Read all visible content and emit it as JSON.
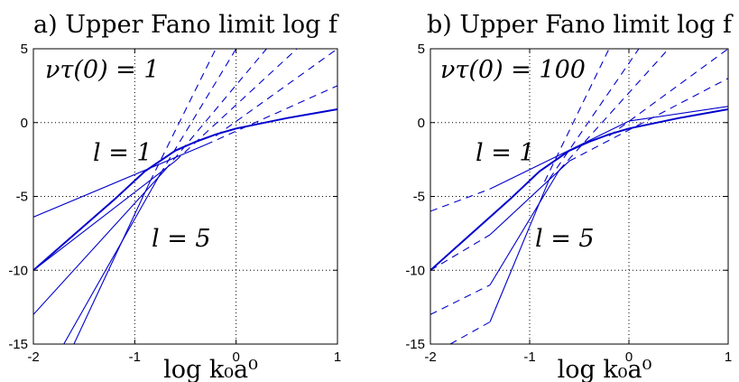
{
  "chart_data": [
    {
      "type": "line",
      "title": "a) Upper Fano limit log f",
      "xlabel": "log k₀a⁰",
      "ylabel": "",
      "xlim": [
        -2,
        1
      ],
      "ylim": [
        -15,
        5
      ],
      "x_ticks": [
        "-2",
        "-1",
        "0",
        "1"
      ],
      "y_ticks": [
        "5",
        "0",
        "-5",
        "-10",
        "-15"
      ],
      "grid": true,
      "annotations": [
        "ντ(0) = 1",
        "l = 1",
        "l = 5"
      ],
      "envelope": {
        "x": [
          -2,
          -1.6,
          -1.2,
          -0.9,
          -0.6,
          -0.4,
          -0.2,
          0,
          0.5,
          1
        ],
        "y": [
          -10,
          -7.6,
          -5.2,
          -3.3,
          -1.9,
          -1.3,
          -0.8,
          -0.4,
          0.3,
          0.9
        ]
      },
      "series": [
        {
          "x": [
            -2,
            -0.3
          ],
          "y": [
            -6.4,
            -1.5
          ],
          "style": "solid"
        },
        {
          "x": [
            -0.3,
            1
          ],
          "y": [
            -1.5,
            2.5
          ],
          "style": "dashed"
        },
        {
          "x": [
            -2,
            -0.6
          ],
          "y": [
            -10,
            -2.6
          ],
          "style": "solid"
        },
        {
          "x": [
            -0.6,
            0.6
          ],
          "y": [
            -2.6,
            5
          ],
          "style": "dashed"
        },
        {
          "x": [
            -1.7,
            -0.75
          ],
          "y": [
            -15,
            -3.5
          ],
          "style": "solid"
        },
        {
          "x": [
            -0.75,
            0
          ],
          "y": [
            -3.5,
            5
          ],
          "style": "dashed"
        },
        {
          "x": [
            -2,
            -0.7
          ],
          "y": [
            -13,
            -3.2
          ],
          "style": "solid"
        },
        {
          "x": [
            -0.7,
            0.3
          ],
          "y": [
            -3.2,
            5
          ],
          "style": "dashed"
        },
        {
          "x": [
            -1.6,
            -0.85
          ],
          "y": [
            -15,
            -4
          ],
          "style": "solid"
        },
        {
          "x": [
            -0.85,
            -0.2
          ],
          "y": [
            -4,
            5
          ],
          "style": "dashed"
        },
        {
          "x": [
            -0.2,
            1
          ],
          "y": [
            -0.9,
            5
          ],
          "style": "dashed"
        }
      ]
    },
    {
      "type": "line",
      "title": "b) Upper Fano limit log f",
      "xlabel": "log k₀a⁰",
      "ylabel": "",
      "xlim": [
        -2,
        1
      ],
      "ylim": [
        -15,
        5
      ],
      "x_ticks": [
        "-2",
        "-1",
        "0",
        "1"
      ],
      "y_ticks": [
        "5",
        "0",
        "-5",
        "-10",
        "-15"
      ],
      "grid": true,
      "annotations": [
        "ντ(0) = 100",
        "l = 1",
        "l = 5"
      ],
      "envelope": {
        "x": [
          -2,
          -1.6,
          -1.2,
          -0.9,
          -0.6,
          -0.4,
          -0.2,
          0,
          0.5,
          1
        ],
        "y": [
          -10,
          -7.6,
          -5.2,
          -3.3,
          -1.9,
          -1.3,
          -0.8,
          -0.4,
          0.3,
          0.9
        ]
      },
      "series": [
        {
          "x": [
            -1.4,
            0
          ],
          "y": [
            -4.5,
            0.1
          ],
          "style": "solid"
        },
        {
          "x": [
            0,
            1
          ],
          "y": [
            0.1,
            1.1
          ],
          "style": "solid"
        },
        {
          "x": [
            -2,
            -1.4
          ],
          "y": [
            -6,
            -4.5
          ],
          "style": "dashed"
        },
        {
          "x": [
            -1.4,
            -0.6
          ],
          "y": [
            -7.6,
            -2.6
          ],
          "style": "solid"
        },
        {
          "x": [
            -2,
            -1.4
          ],
          "y": [
            -10,
            -7.6
          ],
          "style": "dashed"
        },
        {
          "x": [
            -0.6,
            1
          ],
          "y": [
            -2.6,
            3
          ],
          "style": "dashed"
        },
        {
          "x": [
            -1.4,
            -0.7
          ],
          "y": [
            -11,
            -3.2
          ],
          "style": "solid"
        },
        {
          "x": [
            -2,
            -1.4
          ],
          "y": [
            -13,
            -11
          ],
          "style": "dashed"
        },
        {
          "x": [
            -0.7,
            0.4
          ],
          "y": [
            -3.2,
            5
          ],
          "style": "dashed"
        },
        {
          "x": [
            -1.4,
            -0.8
          ],
          "y": [
            -13.5,
            -3.8
          ],
          "style": "solid"
        },
        {
          "x": [
            -1.8,
            -1.4
          ],
          "y": [
            -15,
            -13.5
          ],
          "style": "dashed"
        },
        {
          "x": [
            -0.8,
            0.1
          ],
          "y": [
            -3.8,
            5
          ],
          "style": "dashed"
        },
        {
          "x": [
            -0.85,
            -0.2
          ],
          "y": [
            -4,
            5
          ],
          "style": "dashed"
        },
        {
          "x": [
            -0.2,
            1
          ],
          "y": [
            -0.9,
            5
          ],
          "style": "dashed"
        }
      ]
    }
  ]
}
